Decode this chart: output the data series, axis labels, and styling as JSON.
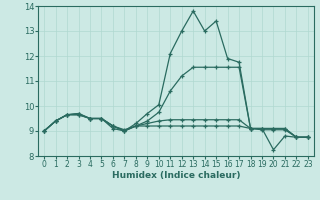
{
  "xlabel": "Humidex (Indice chaleur)",
  "xlim": [
    -0.5,
    23.5
  ],
  "ylim": [
    8,
    14
  ],
  "xticks": [
    0,
    1,
    2,
    3,
    4,
    5,
    6,
    7,
    8,
    9,
    10,
    11,
    12,
    13,
    14,
    15,
    16,
    17,
    18,
    19,
    20,
    21,
    22,
    23
  ],
  "yticks": [
    8,
    9,
    10,
    11,
    12,
    13,
    14
  ],
  "background_color": "#cce9e4",
  "grid_color": "#b0d8d0",
  "line_color": "#2a6b60",
  "lines": [
    [
      9.0,
      9.4,
      9.65,
      9.65,
      9.5,
      9.5,
      9.1,
      9.0,
      9.3,
      9.7,
      10.05,
      12.1,
      13.0,
      13.8,
      13.0,
      13.4,
      11.9,
      11.75,
      9.1,
      9.1,
      8.25,
      8.8,
      8.75,
      8.75
    ],
    [
      9.0,
      9.4,
      9.65,
      9.7,
      9.5,
      9.5,
      9.2,
      9.0,
      9.2,
      9.4,
      9.75,
      10.6,
      11.2,
      11.55,
      11.55,
      11.55,
      11.55,
      11.55,
      9.1,
      9.1,
      9.1,
      9.1,
      8.75,
      8.75
    ],
    [
      9.0,
      9.4,
      9.65,
      9.7,
      9.5,
      9.5,
      9.2,
      9.0,
      9.2,
      9.2,
      9.2,
      9.2,
      9.2,
      9.2,
      9.2,
      9.2,
      9.2,
      9.2,
      9.1,
      9.1,
      9.1,
      9.1,
      8.75,
      8.75
    ],
    [
      9.0,
      9.4,
      9.65,
      9.65,
      9.5,
      9.5,
      9.2,
      9.05,
      9.2,
      9.3,
      9.4,
      9.45,
      9.45,
      9.45,
      9.45,
      9.45,
      9.45,
      9.45,
      9.1,
      9.05,
      9.05,
      9.05,
      8.75,
      8.75
    ]
  ]
}
